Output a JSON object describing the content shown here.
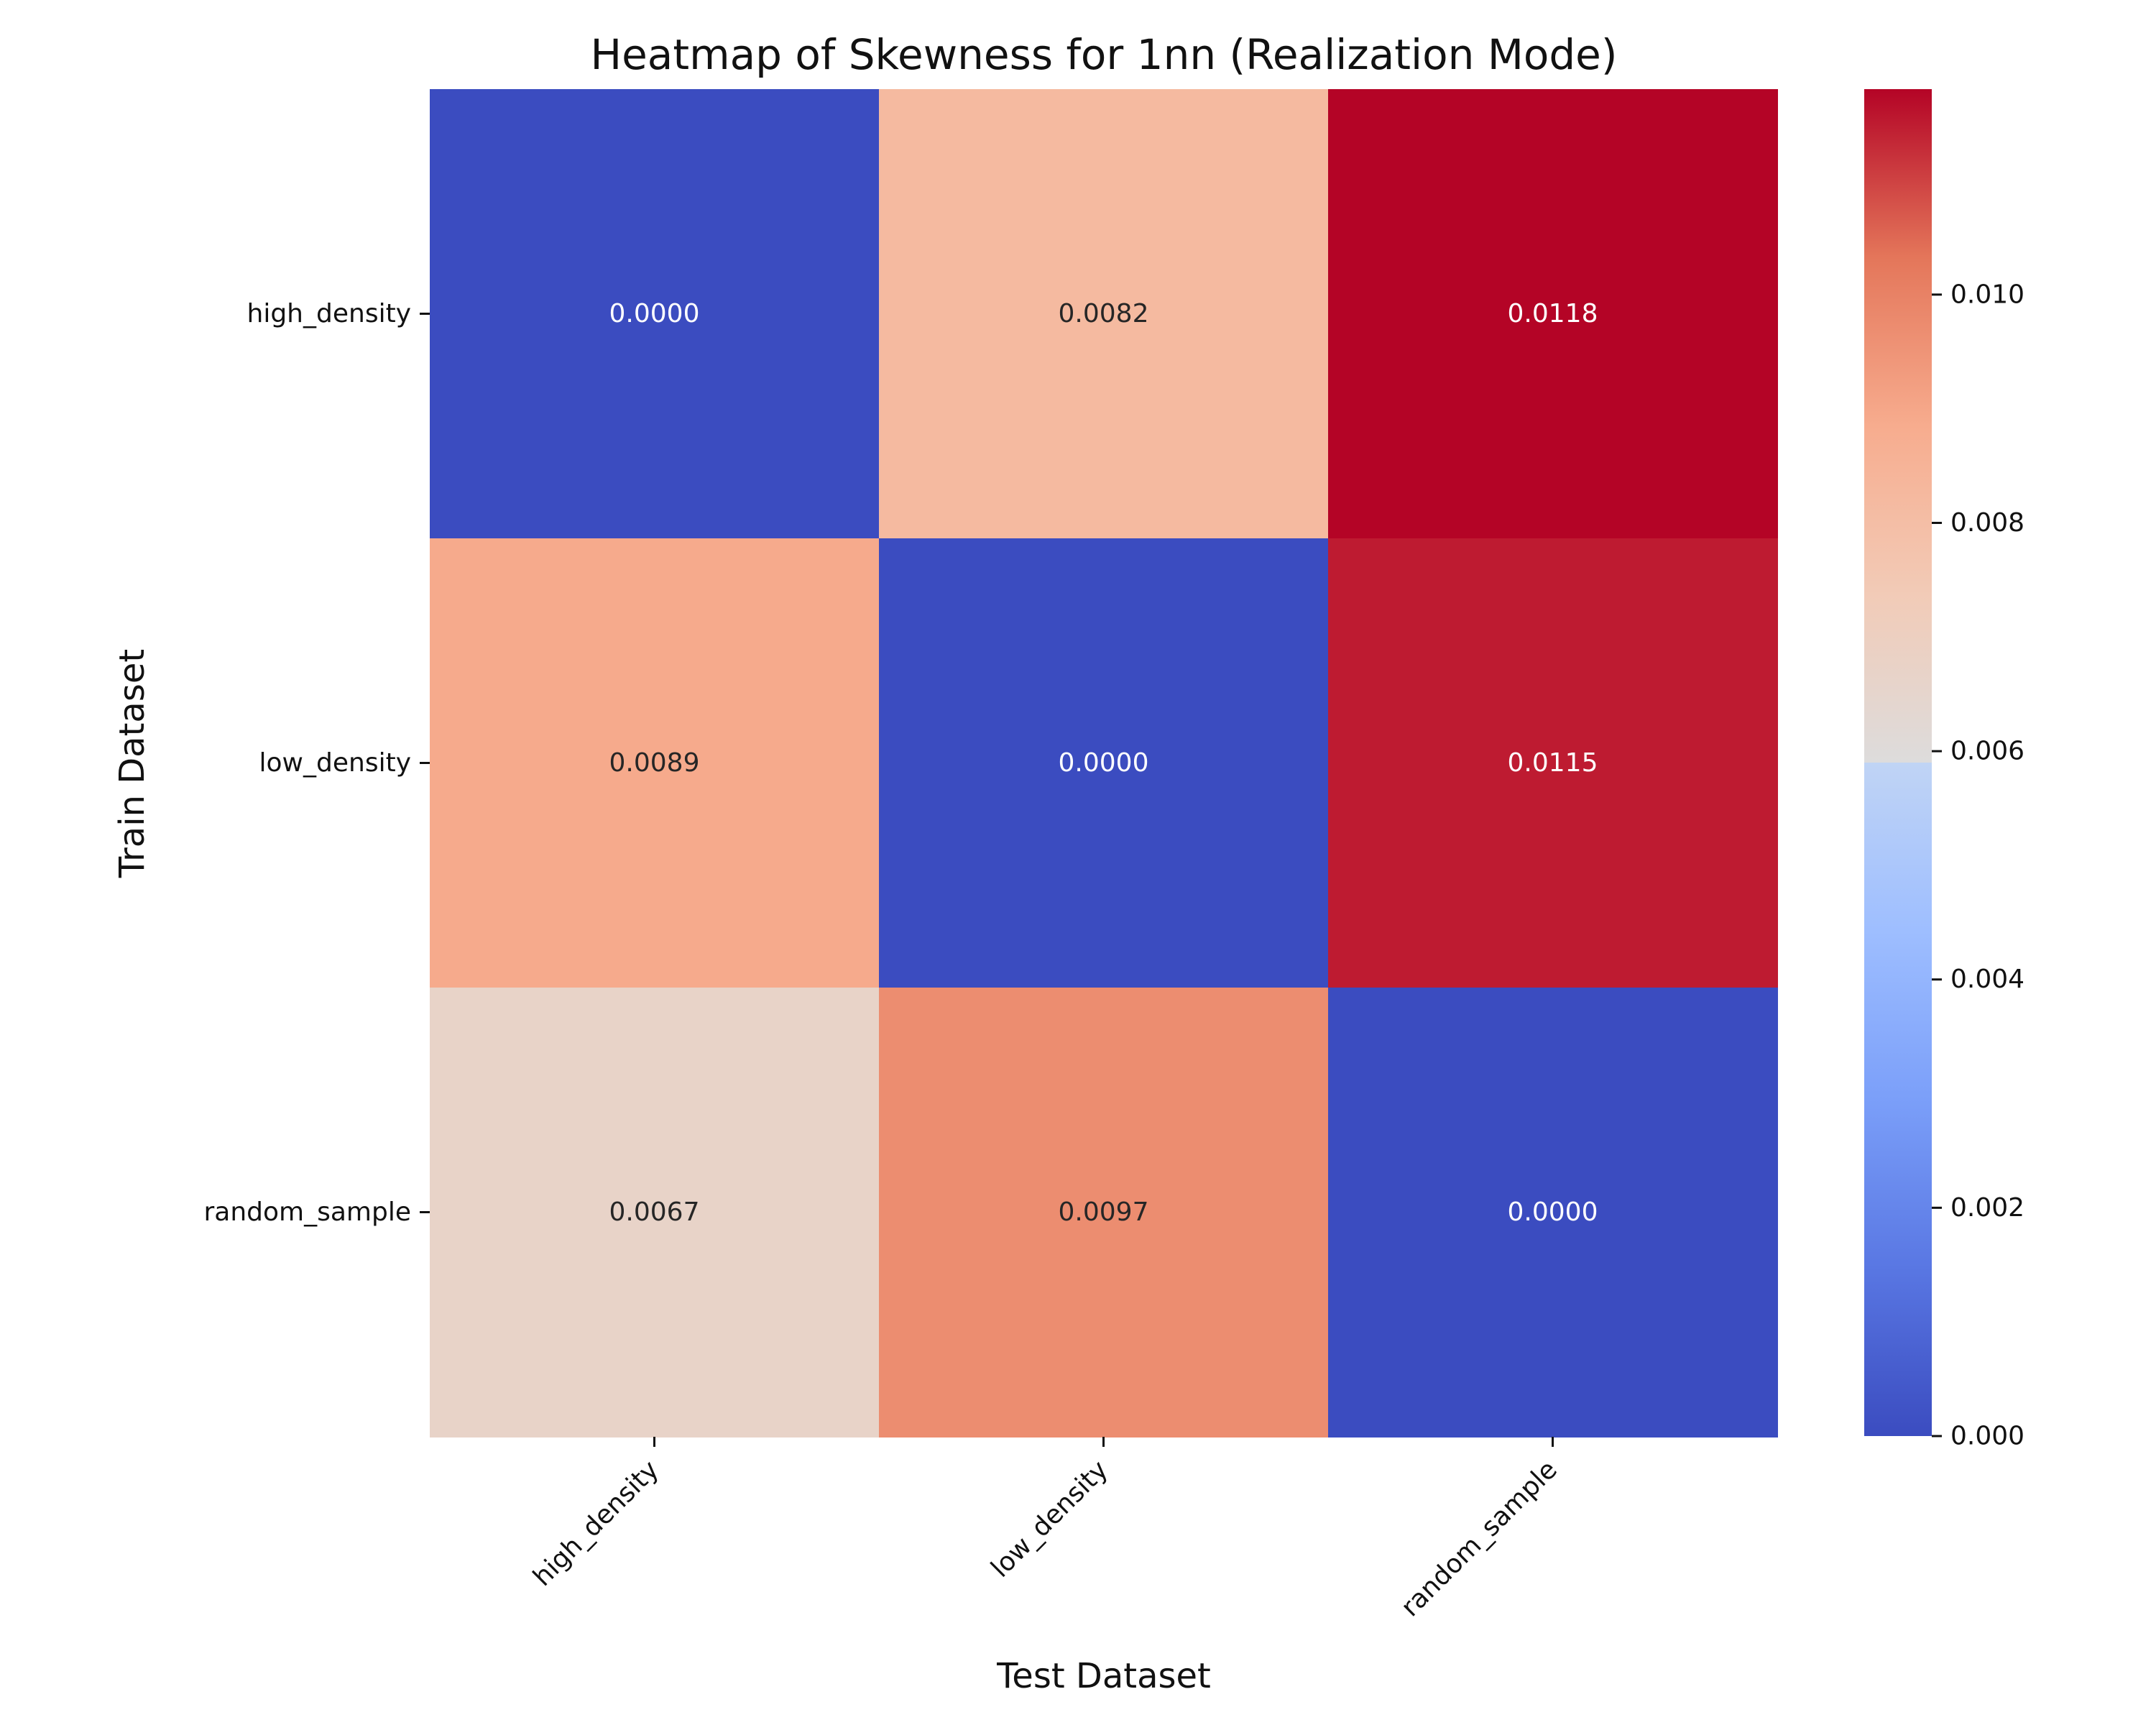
{
  "chart_data": {
    "type": "heatmap",
    "title": "Heatmap of Skewness for 1nn (Realization Mode)",
    "xlabel": "Test Dataset",
    "ylabel": "Train Dataset",
    "x_categories": [
      "high_density",
      "low_density",
      "random_sample"
    ],
    "y_categories": [
      "high_density",
      "low_density",
      "random_sample"
    ],
    "values": [
      [
        0.0,
        0.0082,
        0.0118
      ],
      [
        0.0089,
        0.0,
        0.0115
      ],
      [
        0.0067,
        0.0097,
        0.0
      ]
    ],
    "cell_labels": [
      [
        "0.0000",
        "0.0082",
        "0.0118"
      ],
      [
        "0.0089",
        "0.0000",
        "0.0115"
      ],
      [
        "0.0067",
        "0.0097",
        "0.0000"
      ]
    ],
    "colormap": "coolwarm",
    "colorbar": {
      "vmin": 0.0,
      "vmax": 0.0118,
      "ticks": [
        0.0,
        0.002,
        0.004,
        0.006,
        0.008,
        0.01
      ],
      "tick_labels": [
        "0.000",
        "0.002",
        "0.004",
        "0.006",
        "0.008",
        "0.010"
      ]
    },
    "grid": false
  }
}
